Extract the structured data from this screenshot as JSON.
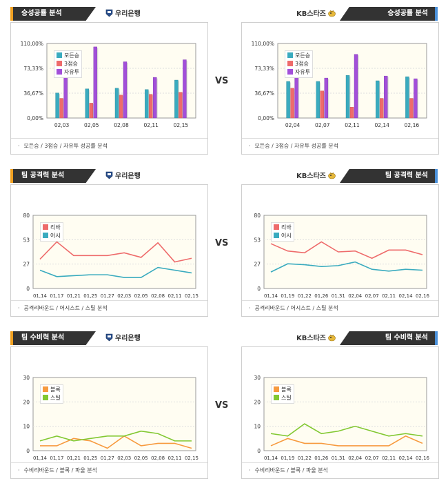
{
  "vs_label": "VS",
  "teams": {
    "left": "우리은행",
    "right": "KB스타즈"
  },
  "colors": {
    "header_bg": "#333333",
    "accent_left": "#f0a020",
    "accent_right": "#4a90d9",
    "plot_bg": "#fffdf2",
    "teal": "#3aabbf",
    "red": "#ee6b6b",
    "purple": "#a24fd9",
    "orange": "#f79a3e",
    "green": "#82c832"
  },
  "sections": [
    {
      "title": "승성공률 분석",
      "footer": "모든승 / 3점승 / 자유투 성공률 분석",
      "legend": [
        "모든승",
        "3점승",
        "자유투"
      ],
      "panels": [
        {
          "side": "left",
          "chart_data": {
            "type": "bar",
            "categories": [
              "02,03",
              "02,05",
              "02,08",
              "02,11",
              "02,15"
            ],
            "yticks": [
              "0,00%",
              "36,67%",
              "73,33%",
              "110,00%"
            ],
            "ylim": [
              0,
              110
            ],
            "series": [
              {
                "name": "모든승",
                "values": [
                  37,
                  43,
                  44,
                  42,
                  56
                ]
              },
              {
                "name": "3점승",
                "values": [
                  29,
                  22,
                  34,
                  35,
                  38
                ]
              },
              {
                "name": "자유투",
                "values": [
                  67,
                  105,
                  83,
                  60,
                  86
                ]
              }
            ]
          }
        },
        {
          "side": "right",
          "chart_data": {
            "type": "bar",
            "categories": [
              "02,04",
              "02,07",
              "02,11",
              "02,14",
              "02,16"
            ],
            "yticks": [
              "0,00%",
              "36,67%",
              "73,33%",
              "110,00%"
            ],
            "ylim": [
              0,
              110
            ],
            "series": [
              {
                "name": "모든승",
                "values": [
                  54,
                  54,
                  63,
                  55,
                  61
                ]
              },
              {
                "name": "3점승",
                "values": [
                  44,
                  40,
                  16,
                  29,
                  29
                ]
              },
              {
                "name": "자유투",
                "values": [
                  70,
                  59,
                  94,
                  62,
                  58
                ]
              }
            ]
          }
        }
      ]
    },
    {
      "title": "팀 공격력 분석",
      "footer": "공격리바운드 / 어시스트 / 스틸 분석",
      "legend": [
        "리바",
        "어시"
      ],
      "panels": [
        {
          "side": "left",
          "chart_data": {
            "type": "line",
            "categories": [
              "01,14",
              "01,17",
              "01,21",
              "01,25",
              "01,27",
              "02,03",
              "02,05",
              "02,08",
              "02,11",
              "02,15"
            ],
            "yticks": [
              "0",
              "27",
              "53",
              "80"
            ],
            "ylim": [
              0,
              80
            ],
            "series": [
              {
                "name": "리바",
                "values": [
                  32,
                  51,
                  36,
                  36,
                  36,
                  39,
                  34,
                  50,
                  29,
                  33
                ]
              },
              {
                "name": "어시",
                "values": [
                  20,
                  13,
                  14,
                  15,
                  15,
                  12,
                  12,
                  23,
                  20,
                  17
                ]
              }
            ]
          }
        },
        {
          "side": "right",
          "chart_data": {
            "type": "line",
            "categories": [
              "01,14",
              "01,19",
              "01,22",
              "01,26",
              "01,31",
              "02,04",
              "02,07",
              "02,11",
              "02,14",
              "02,16"
            ],
            "yticks": [
              "0",
              "27",
              "53",
              "80"
            ],
            "ylim": [
              0,
              80
            ],
            "series": [
              {
                "name": "리바",
                "values": [
                  49,
                  41,
                  39,
                  51,
                  40,
                  41,
                  33,
                  42,
                  42,
                  37
                ]
              },
              {
                "name": "어시",
                "values": [
                  18,
                  27,
                  26,
                  24,
                  25,
                  29,
                  21,
                  19,
                  21,
                  20
                ]
              }
            ]
          }
        }
      ]
    },
    {
      "title": "팀 수비력 분석",
      "footer": "수비리바운드 / 블록 / 파울 분석",
      "legend": [
        "블록",
        "스틸"
      ],
      "panels": [
        {
          "side": "left",
          "chart_data": {
            "type": "line",
            "categories": [
              "01,14",
              "01,17",
              "01,21",
              "01,25",
              "01,27",
              "02,03",
              "02,05",
              "02,08",
              "02,11",
              "02,15"
            ],
            "yticks": [
              "0",
              "10",
              "20",
              "30"
            ],
            "ylim": [
              0,
              30
            ],
            "series": [
              {
                "name": "블록",
                "values": [
                  2,
                  2,
                  5,
                  4,
                  1,
                  6,
                  2,
                  3,
                  3,
                  1
                ]
              },
              {
                "name": "스틸",
                "values": [
                  4,
                  6,
                  4,
                  5,
                  6,
                  6,
                  8,
                  7,
                  4,
                  4
                ]
              }
            ]
          }
        },
        {
          "side": "right",
          "chart_data": {
            "type": "line",
            "categories": [
              "01,14",
              "01,19",
              "01,22",
              "01,26",
              "01,31",
              "02,04",
              "02,07",
              "02,11",
              "02,14",
              "02,16"
            ],
            "yticks": [
              "0",
              "10",
              "20",
              "30"
            ],
            "ylim": [
              0,
              30
            ],
            "series": [
              {
                "name": "블록",
                "values": [
                  2,
                  5,
                  3,
                  3,
                  2,
                  2,
                  2,
                  2,
                  6,
                  3
                ]
              },
              {
                "name": "스틸",
                "values": [
                  7,
                  6,
                  11,
                  7,
                  8,
                  10,
                  8,
                  6,
                  7,
                  6
                ]
              }
            ]
          }
        }
      ]
    }
  ]
}
